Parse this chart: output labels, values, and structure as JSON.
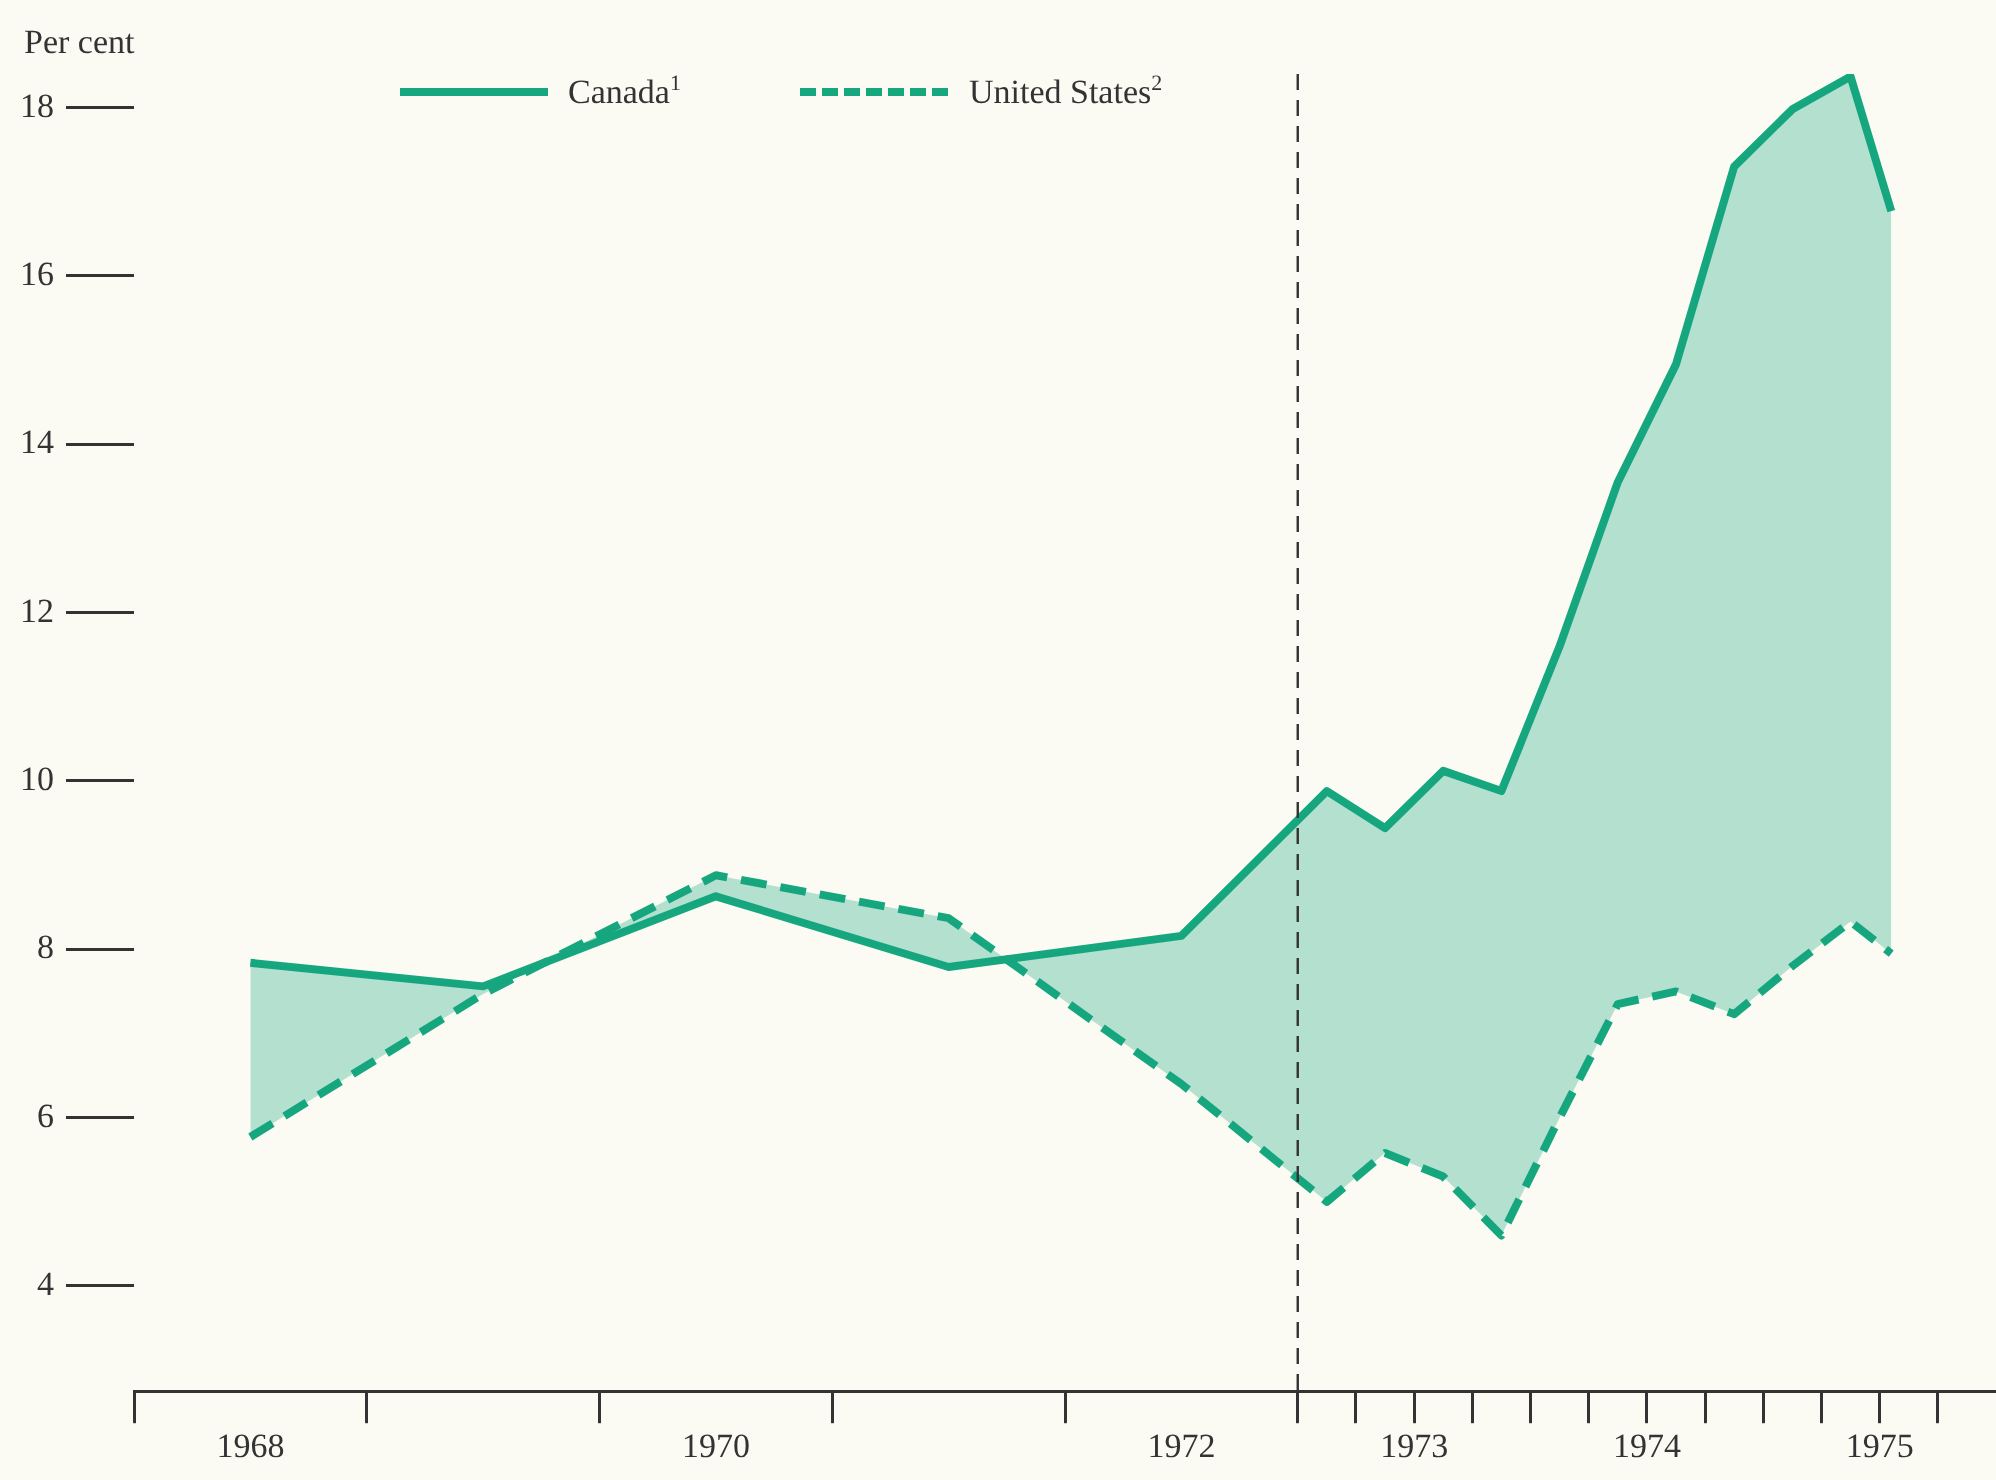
{
  "chart_data": {
    "type": "line",
    "ylabel": "Per cent",
    "x": [
      1968.5,
      1969.5,
      1970.5,
      1971.5,
      1972.5,
      1973.125,
      1973.375,
      1973.625,
      1973.875,
      1974.125,
      1974.375,
      1974.625,
      1974.875,
      1975.125,
      1975.375,
      1975.55
    ],
    "series": [
      {
        "name": "Canada$^{1}$",
        "color": "#17a77f",
        "line_style": "solid",
        "values": [
          7.84,
          7.56,
          8.63,
          7.79,
          8.16,
          9.88,
          9.44,
          10.12,
          9.88,
          11.6,
          13.55,
          14.95,
          17.3,
          17.98,
          18.37,
          16.77
        ],
        "lower": [
          5.77,
          7.47,
          8.88,
          8.37,
          6.4,
          5.0,
          5.58,
          5.3,
          4.6,
          6.0,
          7.35,
          7.5,
          7.23,
          7.8,
          8.33,
          7.95
        ],
        "upper": [
          7.84,
          7.56,
          8.63,
          7.79,
          8.16,
          9.88,
          9.44,
          10.12,
          9.88,
          11.6,
          13.55,
          14.95,
          17.3,
          17.98,
          18.37,
          16.77
        ]
      },
      {
        "name": "United States$^{2}$",
        "color": "#17a77f",
        "line_style": "dashed",
        "values": [
          5.77,
          7.47,
          8.88,
          8.37,
          6.4,
          5.0,
          5.58,
          5.3,
          4.6,
          6.0,
          7.35,
          7.5,
          7.23,
          7.8,
          8.33,
          7.95
        ]
      }
    ],
    "xlim": [
      1968,
      1976
    ],
    "ylim": [
      2.75,
      18.4
    ],
    "xticks": [
      {
        "value": 1968,
        "label": null
      },
      {
        "value": 1968.5,
        "label": "1968"
      },
      {
        "value": 1969,
        "label": null
      },
      {
        "value": 1970,
        "label": null
      },
      {
        "value": 1970.5,
        "label": "1970"
      },
      {
        "value": 1971,
        "label": null
      },
      {
        "value": 1972,
        "label": null
      },
      {
        "value": 1972.5,
        "label": "1972"
      },
      {
        "value": 1973,
        "label": null
      },
      {
        "value": 1973.25,
        "label": null
      },
      {
        "value": 1973.5,
        "label": "1973"
      },
      {
        "value": 1973.5,
        "label": null
      },
      {
        "value": 1973.75,
        "label": null
      },
      {
        "value": 1974,
        "label": null
      },
      {
        "value": 1974.25,
        "label": null
      },
      {
        "value": 1974.5,
        "label": "1974"
      },
      {
        "value": 1974.5,
        "label": null
      },
      {
        "value": 1974.75,
        "label": null
      },
      {
        "value": 1975,
        "label": null
      },
      {
        "value": 1975.25,
        "label": null
      },
      {
        "value": 1975.5,
        "label": "1975"
      },
      {
        "value": 1975.5,
        "label": null
      },
      {
        "value": 1975.75,
        "label": null
      }
    ],
    "yticks": [
      4,
      6,
      8,
      10,
      12,
      14,
      16,
      18
    ],
    "ref_lines": [
      {
        "axis": "x",
        "value": 1973,
        "color": "#333333",
        "line_style": "dashed"
      }
    ],
    "grid": false,
    "legend": "top",
    "marker": "none"
  }
}
